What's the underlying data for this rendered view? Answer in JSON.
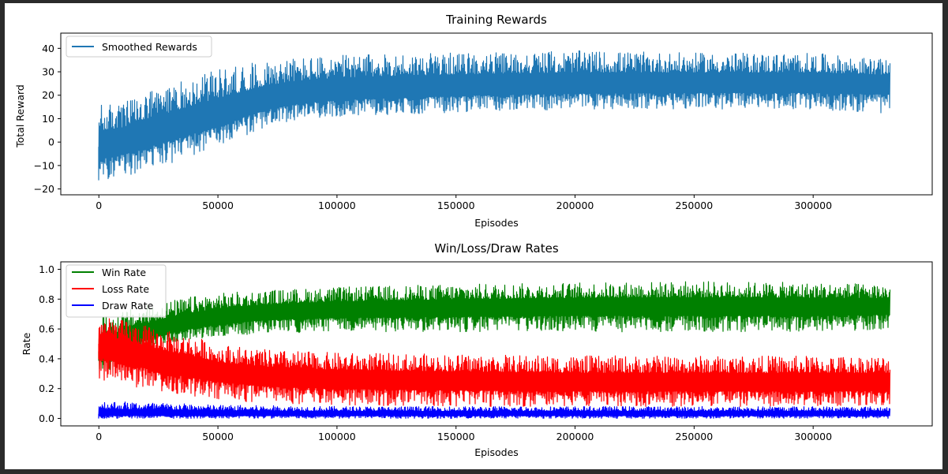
{
  "chart_data": [
    {
      "type": "line",
      "title": "Training Rewards",
      "xlabel": "Episodes",
      "ylabel": "Total Reward",
      "xlim": [
        -16000,
        350000
      ],
      "ylim": [
        -22.5,
        46.5
      ],
      "xticks": [
        0,
        50000,
        100000,
        150000,
        200000,
        250000,
        300000
      ],
      "xtick_labels": [
        "0",
        "50000",
        "100000",
        "150000",
        "200000",
        "250000",
        "300000"
      ],
      "yticks": [
        -20,
        -10,
        0,
        10,
        20,
        30,
        40
      ],
      "ytick_labels": [
        "−20",
        "−10",
        "0",
        "10",
        "20",
        "30",
        "40"
      ],
      "grid": false,
      "legend": "upper-left",
      "x_max": 332000,
      "series": [
        {
          "name": "Smoothed Rewards",
          "color": "#1f77b4",
          "envelope": {
            "x": [
              0,
              10000,
              20000,
              30000,
              40000,
              50000,
              60000,
              70000,
              80000,
              100000,
              130000,
              160000,
              200000,
              250000,
              300000,
              332000
            ],
            "mean": [
              -2,
              0,
              3,
              6,
              9,
              12,
              15,
              18,
              20,
              22,
              23,
              24,
              24.5,
              25,
              25,
              25
            ],
            "low": [
              -17,
              -15,
              -12,
              -9,
              -6,
              -3,
              2,
              6,
              9,
              11,
              12,
              13,
              14,
              14,
              14,
              12
            ],
            "high": [
              16,
              17,
              21,
              25,
              28,
              31,
              33,
              35,
              36,
              37,
              38,
              38,
              39,
              38,
              38,
              35
            ]
          }
        }
      ]
    },
    {
      "type": "line",
      "title": "Win/Loss/Draw Rates",
      "xlabel": "Episodes",
      "ylabel": "Rate",
      "xlim": [
        -16000,
        350000
      ],
      "ylim": [
        -0.05,
        1.05
      ],
      "xticks": [
        0,
        50000,
        100000,
        150000,
        200000,
        250000,
        300000
      ],
      "xtick_labels": [
        "0",
        "50000",
        "100000",
        "150000",
        "200000",
        "250000",
        "300000"
      ],
      "yticks": [
        0.0,
        0.2,
        0.4,
        0.6,
        0.8,
        1.0
      ],
      "ytick_labels": [
        "0.0",
        "0.2",
        "0.4",
        "0.6",
        "0.8",
        "1.0"
      ],
      "grid": false,
      "legend": "upper-left",
      "x_max": 332000,
      "series": [
        {
          "name": "Win Rate",
          "color": "#008000",
          "envelope": {
            "x": [
              0,
              10000,
              20000,
              30000,
              40000,
              50000,
              70000,
              100000,
              150000,
              200000,
              250000,
              300000,
              332000
            ],
            "mean": [
              0.45,
              0.52,
              0.57,
              0.62,
              0.65,
              0.68,
              0.71,
              0.73,
              0.74,
              0.75,
              0.75,
              0.75,
              0.75
            ],
            "low": [
              0.28,
              0.38,
              0.45,
              0.5,
              0.53,
              0.55,
              0.57,
              0.58,
              0.58,
              0.58,
              0.58,
              0.58,
              0.6
            ],
            "high": [
              0.68,
              0.72,
              0.76,
              0.79,
              0.82,
              0.84,
              0.86,
              0.88,
              0.9,
              0.91,
              0.92,
              0.91,
              0.9
            ]
          }
        },
        {
          "name": "Loss Rate",
          "color": "#ff0000",
          "envelope": {
            "x": [
              0,
              10000,
              20000,
              30000,
              40000,
              50000,
              70000,
              100000,
              150000,
              200000,
              250000,
              300000,
              332000
            ],
            "mean": [
              0.5,
              0.45,
              0.41,
              0.37,
              0.34,
              0.31,
              0.28,
              0.26,
              0.25,
              0.24,
              0.24,
              0.24,
              0.24
            ],
            "low": [
              0.25,
              0.22,
              0.2,
              0.17,
              0.15,
              0.13,
              0.1,
              0.09,
              0.08,
              0.08,
              0.08,
              0.08,
              0.09
            ],
            "high": [
              0.68,
              0.66,
              0.62,
              0.58,
              0.55,
              0.5,
              0.46,
              0.44,
              0.43,
              0.42,
              0.42,
              0.42,
              0.42
            ]
          }
        },
        {
          "name": "Draw Rate",
          "color": "#0000ff",
          "envelope": {
            "x": [
              0,
              50000,
              100000,
              150000,
              200000,
              250000,
              300000,
              332000
            ],
            "mean": [
              0.03,
              0.03,
              0.03,
              0.03,
              0.03,
              0.03,
              0.03,
              0.03
            ],
            "low": [
              0.0,
              0.0,
              0.0,
              0.0,
              0.0,
              0.0,
              0.0,
              0.0
            ],
            "high": [
              0.12,
              0.09,
              0.08,
              0.08,
              0.08,
              0.08,
              0.08,
              0.08
            ]
          }
        }
      ]
    }
  ]
}
